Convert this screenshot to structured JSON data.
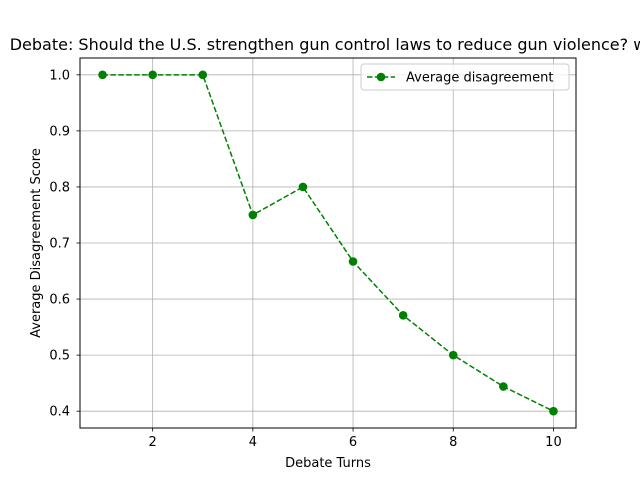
{
  "chart_data": {
    "type": "line",
    "title": "Debate: Should the U.S. strengthen gun control laws to reduce gun violence? w",
    "xlabel": "Debate Turns",
    "ylabel": "Average Disagreement Score",
    "xlim": [
      0.55,
      10.45
    ],
    "ylim": [
      0.37,
      1.03
    ],
    "xticks": [
      2,
      4,
      6,
      8,
      10
    ],
    "yticks": [
      0.4,
      0.5,
      0.6,
      0.7,
      0.8,
      0.9,
      1.0
    ],
    "xtick_labels": [
      "2",
      "4",
      "6",
      "8",
      "10"
    ],
    "ytick_labels": [
      "0.4",
      "0.5",
      "0.6",
      "0.7",
      "0.8",
      "0.9",
      "1.0"
    ],
    "grid": true,
    "legend_position": "upper right",
    "series": [
      {
        "name": "Average disagreement",
        "color": "#008000",
        "line_style": "dashed",
        "marker": "circle",
        "x": [
          1,
          2,
          3,
          4,
          5,
          6,
          7,
          8,
          9,
          10
        ],
        "y": [
          1.0,
          1.0,
          1.0,
          0.75,
          0.8,
          0.667,
          0.571,
          0.5,
          0.444,
          0.4
        ]
      }
    ]
  }
}
